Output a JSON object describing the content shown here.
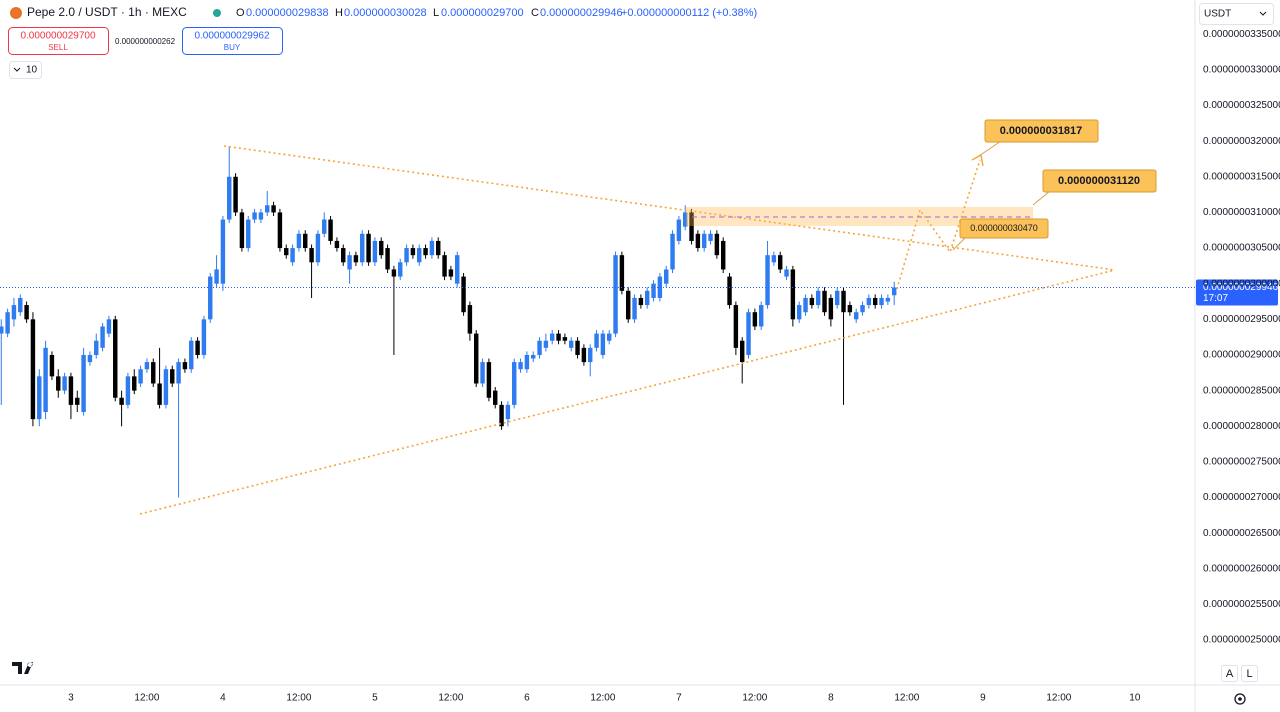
{
  "header": {
    "symbol": "Pepe 2.0 / USDT · 1h · MEXC",
    "o_label": "O",
    "o": "0.000000029838",
    "h_label": "H",
    "h": "0.000000030028",
    "l_label": "L",
    "l": "0.000000029700",
    "c_label": "C",
    "c": "0.000000029946",
    "change": "+0.000000000112 (+0.38%)"
  },
  "trade": {
    "sell_price": "0.000000029700",
    "sell_label": "SELL",
    "spread": "0.000000000262",
    "buy_price": "0.000000029962",
    "buy_label": "BUY"
  },
  "indicator_count": "10",
  "currency": "USDT",
  "buttons": [
    "A",
    "L"
  ],
  "chart_data": {
    "type": "candlestick",
    "up_color": "#2f7bf0",
    "down_color": "#000000",
    "grid": false,
    "xlim": [
      -0.2,
      188.5
    ],
    "xticks": [
      {
        "value": 11,
        "label": "3"
      },
      {
        "value": 23,
        "label": "12:00"
      },
      {
        "value": 35,
        "label": "4"
      },
      {
        "value": 47,
        "label": "12:00"
      },
      {
        "value": 59,
        "label": "5"
      },
      {
        "value": 71,
        "label": "12:00"
      },
      {
        "value": 83,
        "label": "6"
      },
      {
        "value": 95,
        "label": "12:00"
      },
      {
        "value": 107,
        "label": "7"
      },
      {
        "value": 119,
        "label": "12:00"
      },
      {
        "value": 131,
        "label": "8"
      },
      {
        "value": 143,
        "label": "12:00"
      },
      {
        "value": 155,
        "label": "9"
      },
      {
        "value": 167,
        "label": "12:00"
      },
      {
        "value": 179,
        "label": "10"
      }
    ],
    "ylim": [
      2.437e-08,
      3.398e-08
    ],
    "yticks": [
      {
        "value": 2.5e-08,
        "label": "0.0000000250000"
      },
      {
        "value": 2.55e-08,
        "label": "0.0000000255000"
      },
      {
        "value": 2.6e-08,
        "label": "0.0000000260000"
      },
      {
        "value": 2.65e-08,
        "label": "0.0000000265000"
      },
      {
        "value": 2.7e-08,
        "label": "0.0000000270000"
      },
      {
        "value": 2.75e-08,
        "label": "0.0000000275000"
      },
      {
        "value": 2.8e-08,
        "label": "0.0000000280000"
      },
      {
        "value": 2.85e-08,
        "label": "0.0000000285000"
      },
      {
        "value": 2.9e-08,
        "label": "0.0000000290000"
      },
      {
        "value": 2.95e-08,
        "label": "0.0000000295000"
      },
      {
        "value": 3e-08,
        "label": "0.0000000300000"
      },
      {
        "value": 3.05e-08,
        "label": "0.0000000305000"
      },
      {
        "value": 3.1e-08,
        "label": "0.0000000310000"
      },
      {
        "value": 3.15e-08,
        "label": "0.0000000315000"
      },
      {
        "value": 3.2e-08,
        "label": "0.0000000320000"
      },
      {
        "value": 3.25e-08,
        "label": "0.0000000325000"
      },
      {
        "value": 3.3e-08,
        "label": "0.0000000330000"
      },
      {
        "value": 3.35e-08,
        "label": "0.0000000335000"
      }
    ],
    "last_price": {
      "value": 2.9946e-08,
      "label": "0.000000029946"
    },
    "countdown": "17:07",
    "annotations": [
      "0.000000031817",
      "0.000000031120",
      "0.000000030470"
    ],
    "ohlc": [
      [
        2.93e-08,
        2.95e-08,
        2.83e-08,
        2.94e-08
      ],
      [
        2.93e-08,
        2.965e-08,
        2.925e-08,
        2.96e-08
      ],
      [
        2.95e-08,
        2.98e-08,
        2.94e-08,
        2.97e-08
      ],
      [
        2.96e-08,
        2.985e-08,
        2.955e-08,
        2.98e-08
      ],
      [
        2.97e-08,
        2.975e-08,
        2.945e-08,
        2.95e-08
      ],
      [
        2.95e-08,
        2.96e-08,
        2.8e-08,
        2.81e-08
      ],
      [
        2.81e-08,
        2.88e-08,
        2.8e-08,
        2.87e-08
      ],
      [
        2.82e-08,
        2.92e-08,
        2.81e-08,
        2.91e-08
      ],
      [
        2.9e-08,
        2.905e-08,
        2.865e-08,
        2.87e-08
      ],
      [
        2.87e-08,
        2.88e-08,
        2.84e-08,
        2.85e-08
      ],
      [
        2.85e-08,
        2.875e-08,
        2.845e-08,
        2.87e-08
      ],
      [
        2.87e-08,
        2.875e-08,
        2.81e-08,
        2.83e-08
      ],
      [
        2.84e-08,
        2.85e-08,
        2.82e-08,
        2.83e-08
      ],
      [
        2.82e-08,
        2.91e-08,
        2.815e-08,
        2.9e-08
      ],
      [
        2.89e-08,
        2.905e-08,
        2.885e-08,
        2.9e-08
      ],
      [
        2.9e-08,
        2.93e-08,
        2.895e-08,
        2.92e-08
      ],
      [
        2.91e-08,
        2.945e-08,
        2.905e-08,
        2.94e-08
      ],
      [
        2.93e-08,
        2.955e-08,
        2.925e-08,
        2.95e-08
      ],
      [
        2.95e-08,
        2.955e-08,
        2.835e-08,
        2.84e-08
      ],
      [
        2.84e-08,
        2.85e-08,
        2.8e-08,
        2.83e-08
      ],
      [
        2.83e-08,
        2.875e-08,
        2.825e-08,
        2.87e-08
      ],
      [
        2.87e-08,
        2.88e-08,
        2.845e-08,
        2.85e-08
      ],
      [
        2.86e-08,
        2.885e-08,
        2.855e-08,
        2.88e-08
      ],
      [
        2.88e-08,
        2.895e-08,
        2.875e-08,
        2.89e-08
      ],
      [
        2.89e-08,
        2.895e-08,
        2.855e-08,
        2.86e-08
      ],
      [
        2.86e-08,
        2.91e-08,
        2.825e-08,
        2.83e-08
      ],
      [
        2.83e-08,
        2.885e-08,
        2.825e-08,
        2.88e-08
      ],
      [
        2.88e-08,
        2.885e-08,
        2.855e-08,
        2.86e-08
      ],
      [
        2.86e-08,
        2.895e-08,
        2.7e-08,
        2.89e-08
      ],
      [
        2.89e-08,
        2.895e-08,
        2.875e-08,
        2.88e-08
      ],
      [
        2.88e-08,
        2.925e-08,
        2.875e-08,
        2.92e-08
      ],
      [
        2.92e-08,
        2.925e-08,
        2.895e-08,
        2.9e-08
      ],
      [
        2.9e-08,
        2.955e-08,
        2.895e-08,
        2.95e-08
      ],
      [
        2.95e-08,
        3.015e-08,
        2.945e-08,
        3.01e-08
      ],
      [
        3e-08,
        3.04e-08,
        2.995e-08,
        3.02e-08
      ],
      [
        3e-08,
        3.095e-08,
        2.99e-08,
        3.09e-08
      ],
      [
        3.09e-08,
        3.193e-08,
        3.085e-08,
        3.15e-08
      ],
      [
        3.15e-08,
        3.155e-08,
        3.095e-08,
        3.1e-08
      ],
      [
        3.1e-08,
        3.105e-08,
        3.045e-08,
        3.05e-08
      ],
      [
        3.05e-08,
        3.095e-08,
        3.045e-08,
        3.09e-08
      ],
      [
        3.09e-08,
        3.105e-08,
        3.085e-08,
        3.1e-08
      ],
      [
        3.09e-08,
        3.105e-08,
        3.085e-08,
        3.1e-08
      ],
      [
        3.1e-08,
        3.13e-08,
        3.095e-08,
        3.11e-08
      ],
      [
        3.11e-08,
        3.115e-08,
        3.095e-08,
        3.1e-08
      ],
      [
        3.1e-08,
        3.105e-08,
        3.045e-08,
        3.05e-08
      ],
      [
        3.05e-08,
        3.055e-08,
        3.035e-08,
        3.04e-08
      ],
      [
        3.03e-08,
        3.055e-08,
        3.025e-08,
        3.05e-08
      ],
      [
        3.05e-08,
        3.075e-08,
        3.045e-08,
        3.07e-08
      ],
      [
        3.07e-08,
        3.075e-08,
        3.045e-08,
        3.05e-08
      ],
      [
        3.05e-08,
        3.055e-08,
        2.98e-08,
        3.03e-08
      ],
      [
        3.03e-08,
        3.075e-08,
        3.025e-08,
        3.07e-08
      ],
      [
        3.07e-08,
        3.1e-08,
        3.065e-08,
        3.09e-08
      ],
      [
        3.09e-08,
        3.095e-08,
        3.055e-08,
        3.06e-08
      ],
      [
        3.06e-08,
        3.065e-08,
        3.045e-08,
        3.05e-08
      ],
      [
        3.05e-08,
        3.055e-08,
        3.025e-08,
        3.03e-08
      ],
      [
        3.02e-08,
        3.045e-08,
        3e-08,
        3.04e-08
      ],
      [
        3.04e-08,
        3.045e-08,
        3.025e-08,
        3.03e-08
      ],
      [
        3.03e-08,
        3.075e-08,
        3.025e-08,
        3.07e-08
      ],
      [
        3.07e-08,
        3.075e-08,
        3.025e-08,
        3.03e-08
      ],
      [
        3.03e-08,
        3.065e-08,
        3.025e-08,
        3.06e-08
      ],
      [
        3.06e-08,
        3.065e-08,
        3.035e-08,
        3.04e-08
      ],
      [
        3.05e-08,
        3.055e-08,
        3.015e-08,
        3.02e-08
      ],
      [
        3.02e-08,
        3.025e-08,
        2.9e-08,
        3.01e-08
      ],
      [
        3.01e-08,
        3.035e-08,
        3.005e-08,
        3.03e-08
      ],
      [
        3.03e-08,
        3.055e-08,
        3.025e-08,
        3.05e-08
      ],
      [
        3.05e-08,
        3.055e-08,
        3.035e-08,
        3.04e-08
      ],
      [
        3.03e-08,
        3.055e-08,
        3.025e-08,
        3.05e-08
      ],
      [
        3.05e-08,
        3.055e-08,
        3.035e-08,
        3.04e-08
      ],
      [
        3.04e-08,
        3.065e-08,
        3.035e-08,
        3.06e-08
      ],
      [
        3.06e-08,
        3.065e-08,
        3.035e-08,
        3.04e-08
      ],
      [
        3.04e-08,
        3.045e-08,
        3.005e-08,
        3.01e-08
      ],
      [
        3.02e-08,
        3.025e-08,
        3.005e-08,
        3.01e-08
      ],
      [
        3e-08,
        3.045e-08,
        2.995e-08,
        3.04e-08
      ],
      [
        3.01e-08,
        3.015e-08,
        2.955e-08,
        2.96e-08
      ],
      [
        2.97e-08,
        2.975e-08,
        2.92e-08,
        2.93e-08
      ],
      [
        2.93e-08,
        2.935e-08,
        2.855e-08,
        2.86e-08
      ],
      [
        2.86e-08,
        2.895e-08,
        2.855e-08,
        2.89e-08
      ],
      [
        2.89e-08,
        2.895e-08,
        2.835e-08,
        2.84e-08
      ],
      [
        2.85e-08,
        2.855e-08,
        2.825e-08,
        2.83e-08
      ],
      [
        2.83e-08,
        2.835e-08,
        2.795e-08,
        2.8e-08
      ],
      [
        2.81e-08,
        2.835e-08,
        2.8e-08,
        2.83e-08
      ],
      [
        2.83e-08,
        2.895e-08,
        2.825e-08,
        2.89e-08
      ],
      [
        2.88e-08,
        2.895e-08,
        2.875e-08,
        2.89e-08
      ],
      [
        2.88e-08,
        2.905e-08,
        2.875e-08,
        2.9e-08
      ],
      [
        2.895e-08,
        2.905e-08,
        2.89e-08,
        2.9e-08
      ],
      [
        2.9e-08,
        2.925e-08,
        2.895e-08,
        2.92e-08
      ],
      [
        2.91e-08,
        2.93e-08,
        2.905e-08,
        2.92e-08
      ],
      [
        2.92e-08,
        2.935e-08,
        2.915e-08,
        2.93e-08
      ],
      [
        2.93e-08,
        2.935e-08,
        2.915e-08,
        2.92e-08
      ],
      [
        2.925e-08,
        2.93e-08,
        2.915e-08,
        2.92e-08
      ],
      [
        2.91e-08,
        2.925e-08,
        2.905e-08,
        2.92e-08
      ],
      [
        2.92e-08,
        2.925e-08,
        2.895e-08,
        2.9e-08
      ],
      [
        2.91e-08,
        2.915e-08,
        2.885e-08,
        2.89e-08
      ],
      [
        2.89e-08,
        2.915e-08,
        2.87e-08,
        2.91e-08
      ],
      [
        2.91e-08,
        2.935e-08,
        2.905e-08,
        2.93e-08
      ],
      [
        2.9e-08,
        2.935e-08,
        2.895e-08,
        2.93e-08
      ],
      [
        2.92e-08,
        2.935e-08,
        2.915e-08,
        2.93e-08
      ],
      [
        2.93e-08,
        3.045e-08,
        2.925e-08,
        3.04e-08
      ],
      [
        3.04e-08,
        3.045e-08,
        2.985e-08,
        2.99e-08
      ],
      [
        2.99e-08,
        2.995e-08,
        2.945e-08,
        2.95e-08
      ],
      [
        2.95e-08,
        2.985e-08,
        2.945e-08,
        2.98e-08
      ],
      [
        2.98e-08,
        2.985e-08,
        2.965e-08,
        2.97e-08
      ],
      [
        2.97e-08,
        2.995e-08,
        2.965e-08,
        2.99e-08
      ],
      [
        2.98e-08,
        3.005e-08,
        2.975e-08,
        3e-08
      ],
      [
        2.98e-08,
        3.015e-08,
        2.975e-08,
        3.01e-08
      ],
      [
        3e-08,
        3.025e-08,
        2.995e-08,
        3.02e-08
      ],
      [
        3.02e-08,
        3.075e-08,
        3.015e-08,
        3.07e-08
      ],
      [
        3.06e-08,
        3.095e-08,
        3.055e-08,
        3.09e-08
      ],
      [
        3.08e-08,
        3.11e-08,
        3.075e-08,
        3.1e-08
      ],
      [
        3.1e-08,
        3.105e-08,
        3.055e-08,
        3.06e-08
      ],
      [
        3.07e-08,
        3.075e-08,
        3.045e-08,
        3.05e-08
      ],
      [
        3.05e-08,
        3.075e-08,
        3.045e-08,
        3.07e-08
      ],
      [
        3.06e-08,
        3.075e-08,
        3.055e-08,
        3.07e-08
      ],
      [
        3.07e-08,
        3.075e-08,
        3.035e-08,
        3.04e-08
      ],
      [
        3.06e-08,
        3.065e-08,
        3.015e-08,
        3.02e-08
      ],
      [
        3.01e-08,
        3.015e-08,
        2.965e-08,
        2.97e-08
      ],
      [
        2.97e-08,
        2.975e-08,
        2.9e-08,
        2.91e-08
      ],
      [
        2.92e-08,
        2.925e-08,
        2.86e-08,
        2.89e-08
      ],
      [
        2.9e-08,
        2.965e-08,
        2.895e-08,
        2.96e-08
      ],
      [
        2.96e-08,
        2.965e-08,
        2.935e-08,
        2.94e-08
      ],
      [
        2.94e-08,
        2.975e-08,
        2.935e-08,
        2.97e-08
      ],
      [
        2.97e-08,
        3.06e-08,
        2.965e-08,
        3.04e-08
      ],
      [
        3.03e-08,
        3.045e-08,
        3.025e-08,
        3.04e-08
      ],
      [
        3.04e-08,
        3.045e-08,
        3.015e-08,
        3.02e-08
      ],
      [
        3.01e-08,
        3.025e-08,
        3.005e-08,
        3.02e-08
      ],
      [
        3.02e-08,
        3.025e-08,
        2.94e-08,
        2.95e-08
      ],
      [
        2.95e-08,
        2.975e-08,
        2.945e-08,
        2.97e-08
      ],
      [
        2.96e-08,
        2.985e-08,
        2.955e-08,
        2.98e-08
      ],
      [
        2.98e-08,
        2.985e-08,
        2.965e-08,
        2.97e-08
      ],
      [
        2.97e-08,
        2.995e-08,
        2.965e-08,
        2.99e-08
      ],
      [
        2.99e-08,
        2.995e-08,
        2.955e-08,
        2.96e-08
      ],
      [
        2.98e-08,
        2.985e-08,
        2.94e-08,
        2.95e-08
      ],
      [
        2.97e-08,
        2.995e-08,
        2.965e-08,
        2.99e-08
      ],
      [
        2.99e-08,
        2.995e-08,
        2.83e-08,
        2.96e-08
      ],
      [
        2.97e-08,
        2.975e-08,
        2.955e-08,
        2.96e-08
      ],
      [
        2.95e-08,
        2.965e-08,
        2.945e-08,
        2.96e-08
      ],
      [
        2.96e-08,
        2.975e-08,
        2.955e-08,
        2.97e-08
      ],
      [
        2.97e-08,
        2.985e-08,
        2.965e-08,
        2.98e-08
      ],
      [
        2.98e-08,
        2.985e-08,
        2.965e-08,
        2.97e-08
      ],
      [
        2.97e-08,
        2.985e-08,
        2.965e-08,
        2.98e-08
      ],
      [
        2.975e-08,
        2.985e-08,
        2.97e-08,
        2.98e-08
      ],
      [
        2.9838e-08,
        3.0028e-08,
        2.97e-08,
        2.9946e-08
      ]
    ]
  }
}
